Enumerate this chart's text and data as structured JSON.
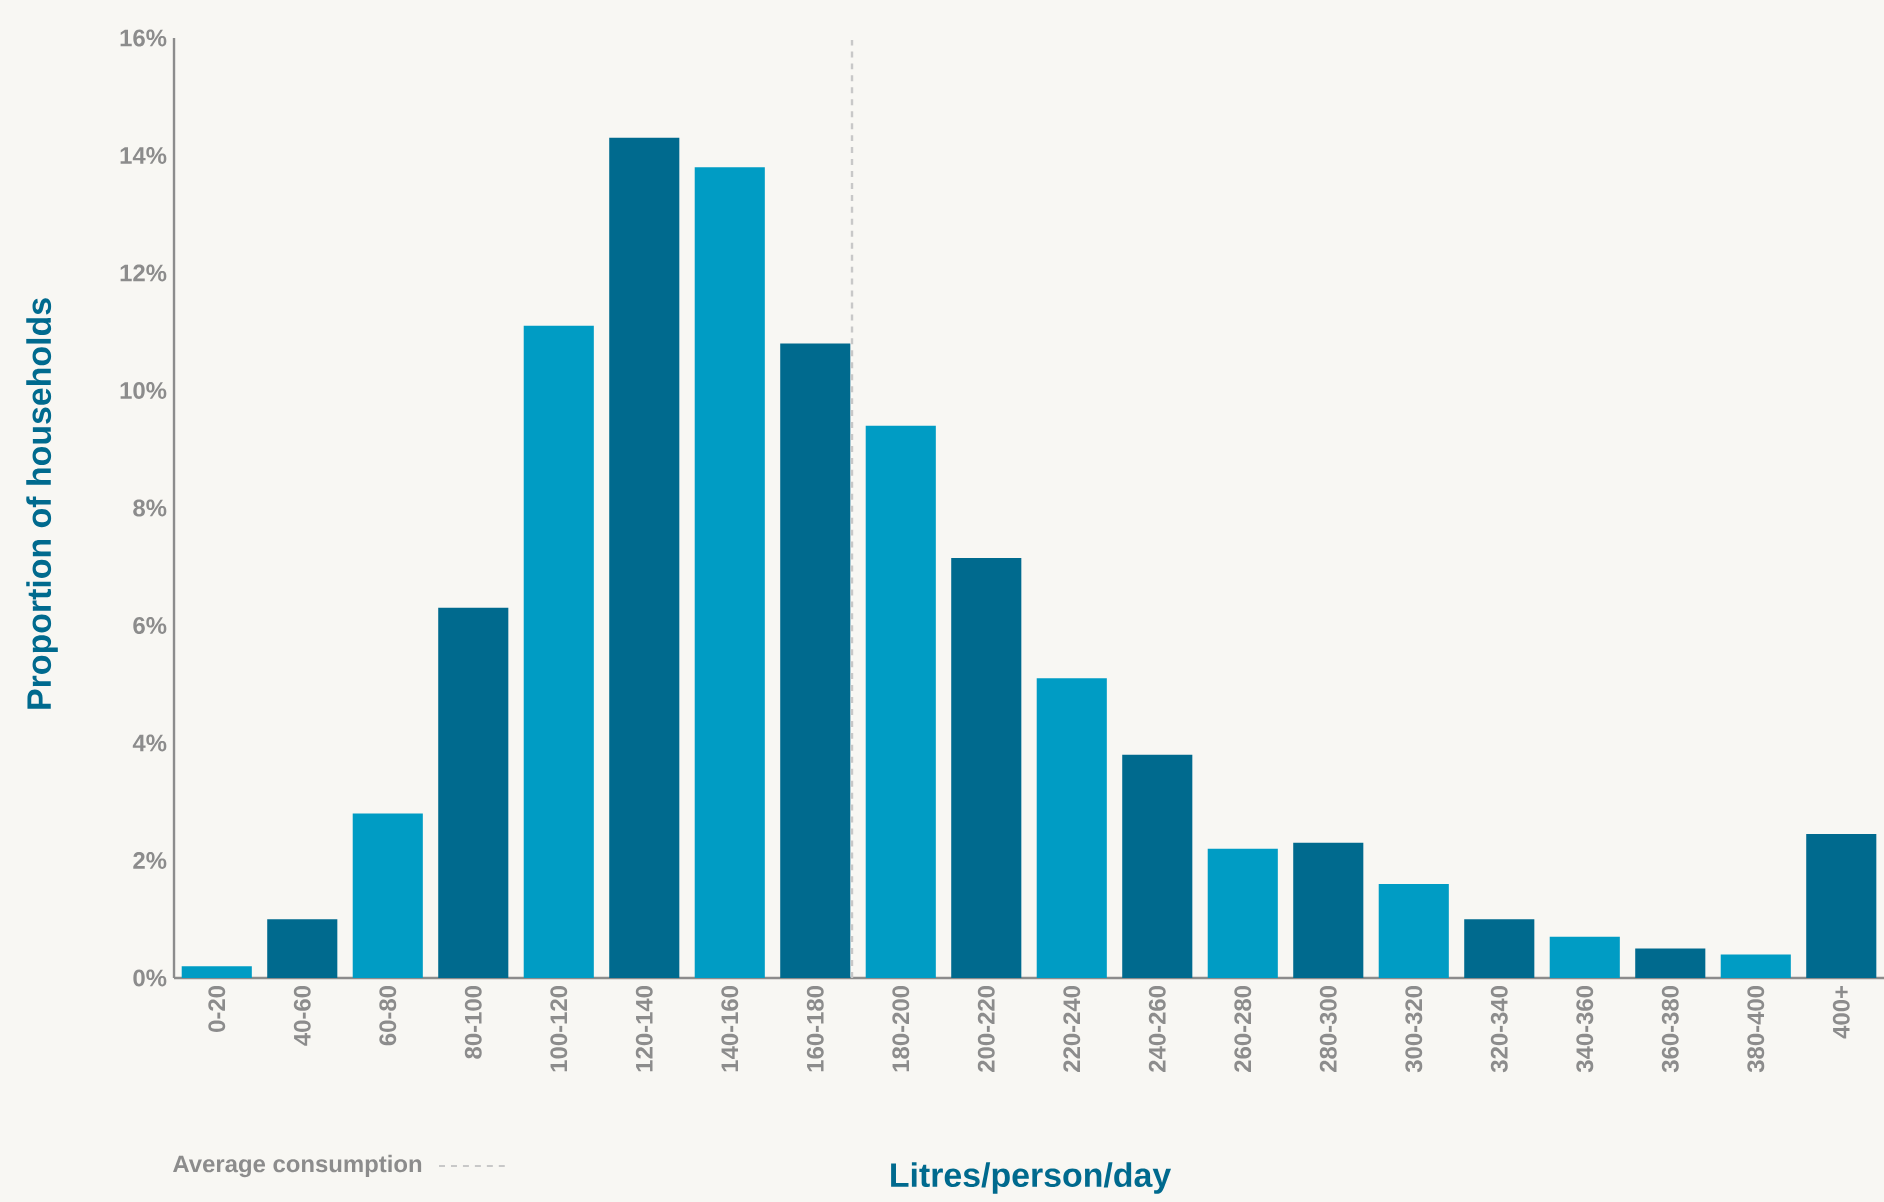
{
  "chart_data": {
    "type": "bar",
    "xlabel": "Litres/person/day",
    "ylabel": "Proportion of households",
    "categories": [
      "0-20",
      "40-60",
      "60-80",
      "80-100",
      "100-120",
      "120-140",
      "140-160",
      "160-180",
      "180-200",
      "200-220",
      "220-240",
      "240-260",
      "260-280",
      "280-300",
      "300-320",
      "320-340",
      "340-360",
      "360-380",
      "380-400",
      "400+"
    ],
    "values": [
      0.2,
      1.0,
      2.8,
      6.3,
      11.1,
      14.3,
      13.8,
      10.8,
      9.4,
      7.15,
      5.1,
      3.8,
      2.2,
      2.3,
      1.6,
      1.0,
      0.7,
      0.5,
      0.4,
      2.45
    ],
    "colors": [
      "#009cc4",
      "#006a8e",
      "#009cc4",
      "#006a8e",
      "#009cc4",
      "#006a8e",
      "#009cc4",
      "#006a8e",
      "#009cc4",
      "#006a8e",
      "#009cc4",
      "#006a8e",
      "#009cc4",
      "#006a8e",
      "#009cc4",
      "#006a8e",
      "#009cc4",
      "#006a8e",
      "#009cc4",
      "#006a8e"
    ],
    "ylim": [
      0,
      16
    ],
    "yticks": [
      {
        "value": 0,
        "label": "0%"
      },
      {
        "value": 2,
        "label": "2%"
      },
      {
        "value": 4,
        "label": "4%"
      },
      {
        "value": 6,
        "label": "6%"
      },
      {
        "value": 8,
        "label": "8%"
      },
      {
        "value": 10,
        "label": "10%"
      },
      {
        "value": 12,
        "label": "12%"
      },
      {
        "value": 14,
        "label": "14%"
      },
      {
        "value": 16,
        "label": "16%"
      }
    ],
    "grid": false,
    "annotations": [
      "Average consumption"
    ]
  }
}
